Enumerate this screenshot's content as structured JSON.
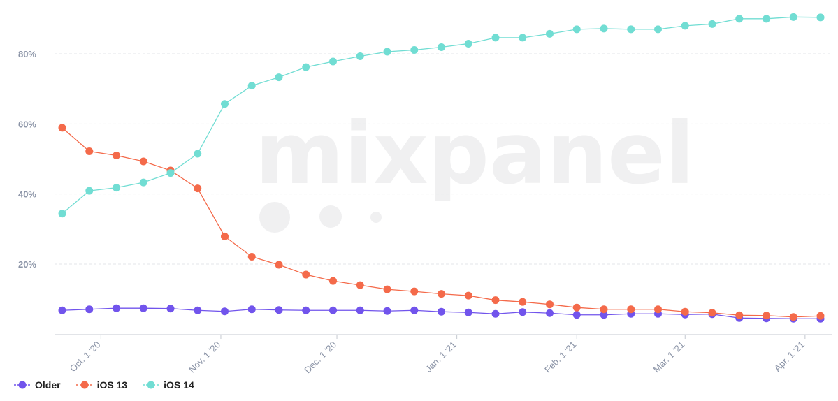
{
  "chart_data": {
    "type": "line",
    "watermark": "mixpanel",
    "y_ticks": [
      {
        "value": 20,
        "label": "20%"
      },
      {
        "value": 40,
        "label": "40%"
      },
      {
        "value": 60,
        "label": "60%"
      },
      {
        "value": 80,
        "label": "80%"
      }
    ],
    "ylim": [
      0,
      100
    ],
    "grid": true,
    "x_ticks": [
      {
        "date": "2020-10-01",
        "label": "Oct. 1 '20"
      },
      {
        "date": "2020-11-01",
        "label": "Nov. 1 '20"
      },
      {
        "date": "2020-12-01",
        "label": "Dec. 1 '20"
      },
      {
        "date": "2021-01-01",
        "label": "Jan. 1 '21"
      },
      {
        "date": "2021-02-01",
        "label": "Feb. 1 '21"
      },
      {
        "date": "2021-03-01",
        "label": "Mar. 1 '21"
      },
      {
        "date": "2021-04-01",
        "label": "Apr. 1 '21"
      }
    ],
    "x": [
      "2020-09-21",
      "2020-09-28",
      "2020-10-05",
      "2020-10-12",
      "2020-10-19",
      "2020-10-26",
      "2020-11-02",
      "2020-11-09",
      "2020-11-16",
      "2020-11-23",
      "2020-11-30",
      "2020-12-07",
      "2020-12-14",
      "2020-12-21",
      "2020-12-28",
      "2021-01-04",
      "2021-01-11",
      "2021-01-18",
      "2021-01-25",
      "2021-02-01",
      "2021-02-08",
      "2021-02-15",
      "2021-02-22",
      "2021-03-01",
      "2021-03-08",
      "2021-03-15",
      "2021-03-22",
      "2021-03-29",
      "2021-04-05"
    ],
    "legend_position": "bottom-left",
    "series": [
      {
        "name": "Older",
        "color": "#7154ec",
        "values": [
          6.8,
          7.1,
          7.4,
          7.4,
          7.3,
          6.8,
          6.5,
          7.1,
          6.9,
          6.8,
          6.8,
          6.8,
          6.6,
          6.8,
          6.4,
          6.2,
          5.8,
          6.3,
          6.0,
          5.5,
          5.5,
          5.8,
          5.8,
          5.6,
          5.7,
          4.6,
          4.5,
          4.4,
          4.4
        ]
      },
      {
        "name": "iOS 13",
        "color": "#f46a4a",
        "values": [
          58.9,
          52.2,
          51.0,
          49.3,
          46.7,
          41.6,
          27.9,
          22.1,
          19.8,
          17.0,
          15.2,
          14.0,
          12.8,
          12.2,
          11.5,
          11.0,
          9.7,
          9.2,
          8.5,
          7.6,
          7.1,
          7.1,
          7.1,
          6.4,
          6.1,
          5.4,
          5.3,
          4.9,
          5.2
        ]
      },
      {
        "name": "iOS 14",
        "color": "#71ddd3",
        "values": [
          34.4,
          40.9,
          41.8,
          43.3,
          46.0,
          51.5,
          65.7,
          70.9,
          73.3,
          76.2,
          77.8,
          79.3,
          80.6,
          81.1,
          81.9,
          82.9,
          84.6,
          84.6,
          85.7,
          87.0,
          87.2,
          87.0,
          87.0,
          88.0,
          88.5,
          90.0,
          90.0,
          90.5,
          90.4
        ]
      }
    ]
  }
}
